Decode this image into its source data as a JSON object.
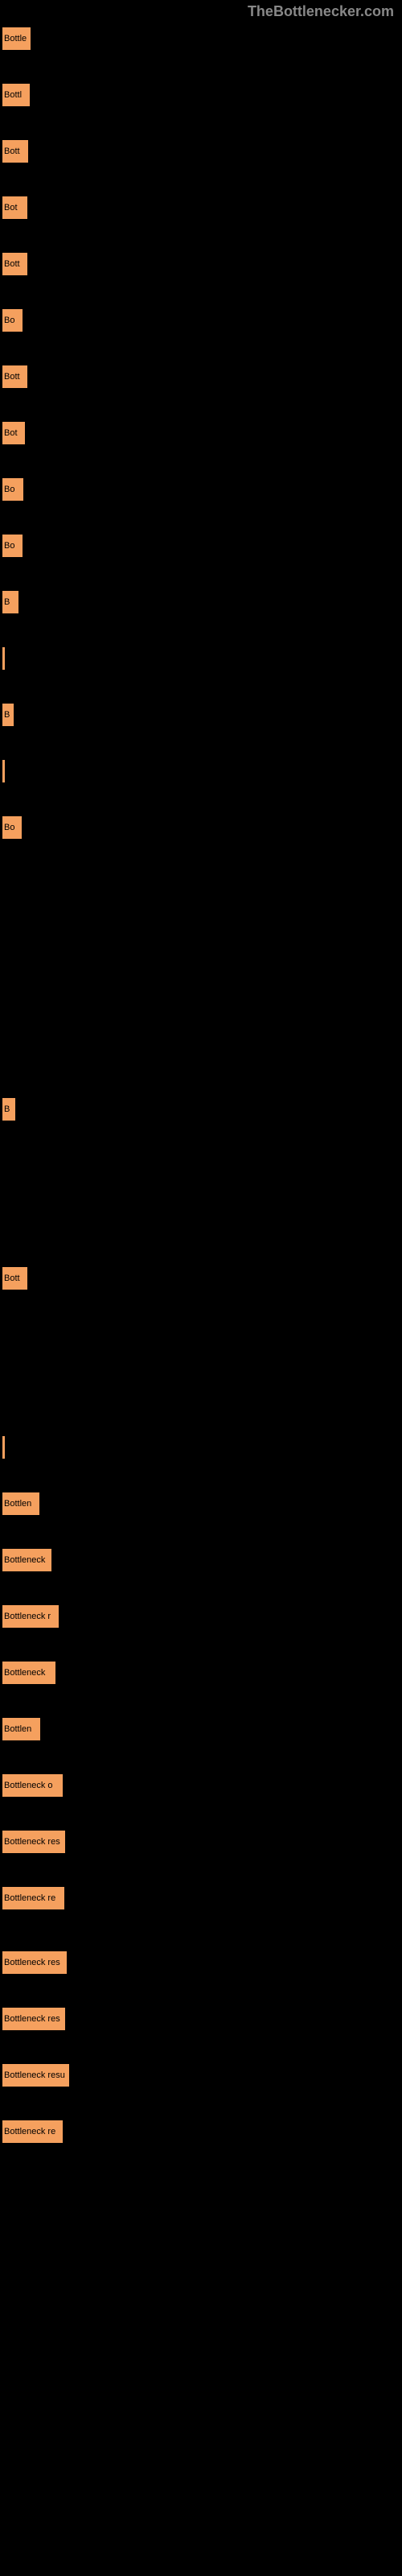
{
  "header": {
    "title": "TheBottlenecker.com"
  },
  "bars": [
    {
      "label": "Bottle",
      "width": 37
    },
    {
      "label": "Bottl",
      "width": 36
    },
    {
      "label": "Bott",
      "width": 34
    },
    {
      "label": "Bot",
      "width": 33
    },
    {
      "label": "Bott",
      "width": 33
    },
    {
      "label": "Bo",
      "width": 27
    },
    {
      "label": "Bott",
      "width": 33
    },
    {
      "label": "Bot",
      "width": 30
    },
    {
      "label": "Bo",
      "width": 28
    },
    {
      "label": "Bo",
      "width": 27
    },
    {
      "label": "B",
      "width": 22
    },
    {
      "label": "",
      "width": 5
    },
    {
      "label": "B",
      "width": 16
    },
    {
      "label": "",
      "width": 5
    },
    {
      "label": "Bo",
      "width": 26
    },
    {
      "label": "B",
      "width": 18
    },
    {
      "label": "Bott",
      "width": 33
    },
    {
      "label": "",
      "width": 5
    },
    {
      "label": "Bottlen",
      "width": 48
    },
    {
      "label": "Bottleneck",
      "width": 63
    },
    {
      "label": "Bottleneck r",
      "width": 72
    },
    {
      "label": "Bottleneck",
      "width": 68
    },
    {
      "label": "Bottlen",
      "width": 49
    },
    {
      "label": "Bottleneck o",
      "width": 77
    },
    {
      "label": "Bottleneck res",
      "width": 80
    },
    {
      "label": "Bottleneck re",
      "width": 79
    },
    {
      "label": "Bottleneck res",
      "width": 82
    },
    {
      "label": "Bottleneck res",
      "width": 80
    },
    {
      "label": "Bottleneck resu",
      "width": 85
    },
    {
      "label": "Bottleneck re",
      "width": 77
    }
  ],
  "colors": {
    "background": "#000000",
    "bar_fill": "#F5A05E",
    "bar_border": "#000000",
    "bar_text": "#000000",
    "header_text": "#888888"
  },
  "gaps": [
    40,
    40,
    40,
    40,
    40,
    40,
    40,
    40,
    40,
    40,
    40,
    40,
    40,
    40,
    320,
    180,
    180,
    40,
    40,
    40,
    40,
    40,
    40,
    40,
    40,
    50,
    40,
    40,
    40,
    40
  ]
}
